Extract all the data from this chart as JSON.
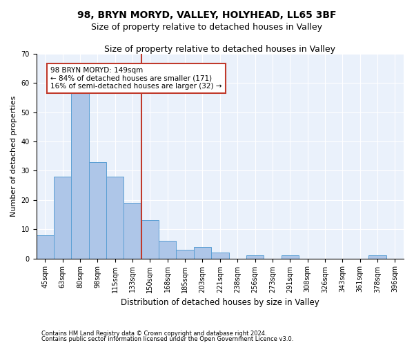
{
  "title_main": "98, BRYN MORYD, VALLEY, HOLYHEAD, LL65 3BF",
  "title_sub": "Size of property relative to detached houses in Valley",
  "xlabel": "Distribution of detached houses by size in Valley",
  "ylabel": "Number of detached properties",
  "footnote1": "Contains HM Land Registry data © Crown copyright and database right 2024.",
  "footnote2": "Contains public sector information licensed under the Open Government Licence v3.0.",
  "bar_labels": [
    "45sqm",
    "63sqm",
    "80sqm",
    "98sqm",
    "115sqm",
    "133sqm",
    "150sqm",
    "168sqm",
    "185sqm",
    "203sqm",
    "221sqm",
    "238sqm",
    "256sqm",
    "273sqm",
    "291sqm",
    "308sqm",
    "326sqm",
    "343sqm",
    "361sqm",
    "378sqm",
    "396sqm"
  ],
  "bar_values": [
    8,
    28,
    58,
    33,
    28,
    19,
    13,
    6,
    3,
    4,
    2,
    0,
    1,
    0,
    1,
    0,
    0,
    0,
    0,
    1,
    0
  ],
  "bar_color": "#aec6e8",
  "bar_edgecolor": "#5a9fd4",
  "vline_x": 5.5,
  "vline_color": "#c0392b",
  "annotation_text": "98 BRYN MORYD: 149sqm\n← 84% of detached houses are smaller (171)\n16% of semi-detached houses are larger (32) →",
  "annotation_box_facecolor": "white",
  "annotation_box_edgecolor": "#c0392b",
  "ylim": [
    0,
    70
  ],
  "yticks": [
    0,
    10,
    20,
    30,
    40,
    50,
    60,
    70
  ],
  "plot_bg_color": "#eaf1fb",
  "title_fontsize": 10,
  "subtitle_fontsize": 9,
  "tick_fontsize": 7,
  "ylabel_fontsize": 8,
  "xlabel_fontsize": 8.5,
  "annotation_fontsize": 7.5,
  "footnote_fontsize": 6
}
